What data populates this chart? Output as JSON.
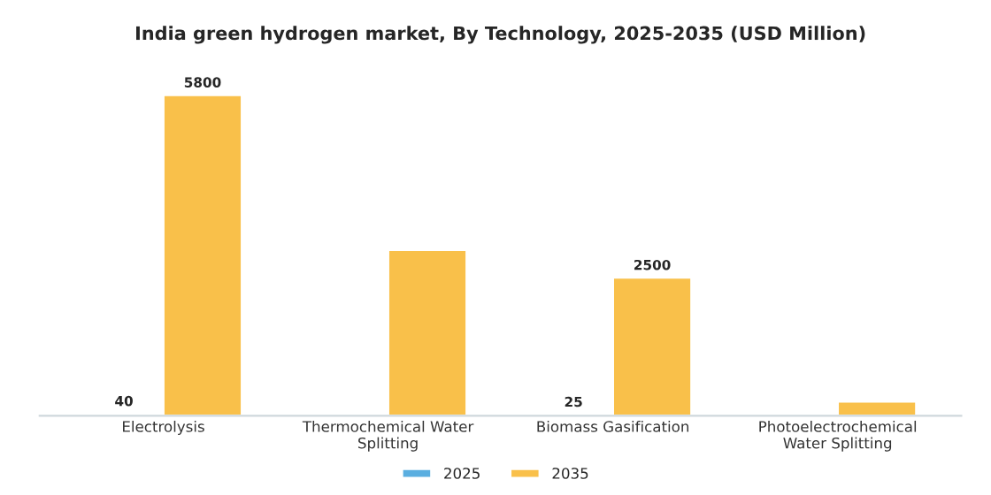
{
  "chart_data": {
    "type": "bar",
    "title": "India green hydrogen market, By Technology, 2025-2035 (USD Million)",
    "categories": [
      "Electrolysis",
      "Thermochemical Water\nSplitting",
      "Biomass Gasification",
      "Photoelectrochemical\nWater Splitting"
    ],
    "series": [
      {
        "name": "2025",
        "color": "#5aaee0",
        "values": [
          40,
          null,
          25,
          null
        ],
        "value_labels": [
          "40",
          null,
          "25",
          null
        ]
      },
      {
        "name": "2035",
        "color": "#f9c04a",
        "values": [
          5800,
          3000,
          2500,
          260
        ],
        "value_labels": [
          "5800",
          null,
          "2500",
          null
        ]
      }
    ],
    "legend": "bottom",
    "grid": false
  }
}
